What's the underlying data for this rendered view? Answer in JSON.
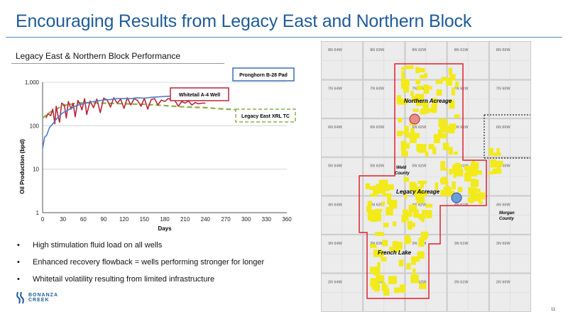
{
  "slide": {
    "title": "Encouraging Results from Legacy East and Northern Block",
    "subtitle": "Legacy East & Northern Block Performance",
    "bullets": [
      "High stimulation fluid load on all wells",
      "Enhanced recovery flowback = wells performing stronger for longer",
      "Whitetail volatility resulting from limited infrastructure"
    ],
    "logo": [
      "BONANZA",
      "CREEK"
    ],
    "page_number": "11"
  },
  "chart_data": {
    "type": "line",
    "xlabel": "Days",
    "ylabel": "Oil Production (bpd)",
    "xlim": [
      0,
      360
    ],
    "ylim": [
      1,
      1000
    ],
    "y_scale": "log",
    "x_ticks": [
      "0",
      "30",
      "60",
      "90",
      "120",
      "150",
      "180",
      "210",
      "240",
      "270",
      "300",
      "330",
      "360"
    ],
    "y_ticks": [
      "1",
      "10",
      "100",
      "1,000"
    ],
    "series": [
      {
        "name": "Pronghorn B-28 Pad",
        "color": "#4a7fc4",
        "x": [
          0,
          3,
          6,
          10,
          15,
          20,
          25,
          30,
          40,
          50,
          60,
          70,
          80,
          90,
          100,
          110,
          120,
          130,
          140,
          150,
          160,
          170,
          180,
          190,
          200,
          210,
          220,
          230,
          240,
          250,
          260,
          265
        ],
        "y": [
          30,
          55,
          60,
          90,
          110,
          140,
          170,
          200,
          240,
          290,
          320,
          350,
          370,
          390,
          400,
          420,
          420,
          420,
          440,
          430,
          450,
          460,
          470,
          480,
          490,
          500,
          510,
          520,
          530,
          540,
          560,
          570
        ]
      },
      {
        "name": "Whitetail A-4 Well",
        "color": "#b8263a",
        "x": [
          5,
          8,
          12,
          15,
          18,
          20,
          22,
          25,
          28,
          32,
          35,
          38,
          42,
          45,
          48,
          52,
          55,
          58,
          62,
          65,
          70,
          75,
          80,
          85,
          90,
          95,
          100,
          105,
          110,
          115,
          120,
          125,
          130,
          135,
          140,
          145,
          150,
          155,
          160,
          165,
          170,
          175,
          180,
          185,
          190,
          195,
          200,
          205,
          210,
          215,
          220,
          225,
          230,
          235,
          240
        ],
        "y": [
          150,
          190,
          170,
          240,
          110,
          280,
          190,
          120,
          330,
          300,
          150,
          360,
          240,
          330,
          160,
          380,
          320,
          230,
          420,
          180,
          370,
          260,
          410,
          200,
          430,
          390,
          270,
          440,
          330,
          410,
          250,
          440,
          300,
          420,
          380,
          280,
          430,
          240,
          400,
          420,
          300,
          390,
          360,
          420,
          400,
          380,
          280,
          360,
          330,
          370,
          300,
          340,
          320,
          330,
          330
        ]
      },
      {
        "name": "Legacy East XRL TC",
        "color": "#8ab04a",
        "x": [
          0,
          10,
          20,
          30,
          45,
          60,
          90,
          120,
          150,
          180,
          210,
          240,
          270,
          300,
          330,
          360
        ],
        "y": [
          150,
          200,
          240,
          290,
          320,
          340,
          330,
          320,
          310,
          290,
          270,
          260,
          240,
          230,
          215,
          200
        ]
      }
    ],
    "legend_labels": [
      "Pronghorn B-28 Pad",
      "Whitetail A-4 Well",
      "Legacy East XRL TC"
    ]
  },
  "map": {
    "grid": [
      [
        "8N 64W",
        "8N 63W",
        "8N 62W",
        "8N 61W",
        "8N 60W"
      ],
      [
        "7N 64W",
        "7N 63W",
        "7N 62W",
        "7N 61W",
        "7N 60W"
      ],
      [
        "6N 64W",
        "6N 63W",
        "6N 62W",
        "6N 61W",
        "6N 60W"
      ],
      [
        "5N 64W",
        "5N 63W",
        "5N 62W",
        "5N 61W",
        "5N 60W"
      ],
      [
        "4N 64W",
        "4N 63W",
        "4N 62W",
        "4N 61W",
        "4N 60W"
      ],
      [
        "3N 64W",
        "3N 63W",
        "3N 62W",
        "3N 61W",
        "3N 60W"
      ],
      [
        "2N 64W",
        "2N 63W",
        "2N 62W",
        "2N 61W",
        "2N 60W"
      ]
    ],
    "labels": {
      "northern": "Northern Acreage",
      "legacy": "Legacy Acreage",
      "french": "French Lake",
      "weld": [
        "Weld",
        "County"
      ],
      "morgan": [
        "Morgan",
        "County"
      ]
    },
    "colors": {
      "acreage": "#f2ea1a",
      "outline": "#e0202e",
      "marker_north": "#e58f8a",
      "marker_legacy": "#6c9ed8"
    }
  }
}
